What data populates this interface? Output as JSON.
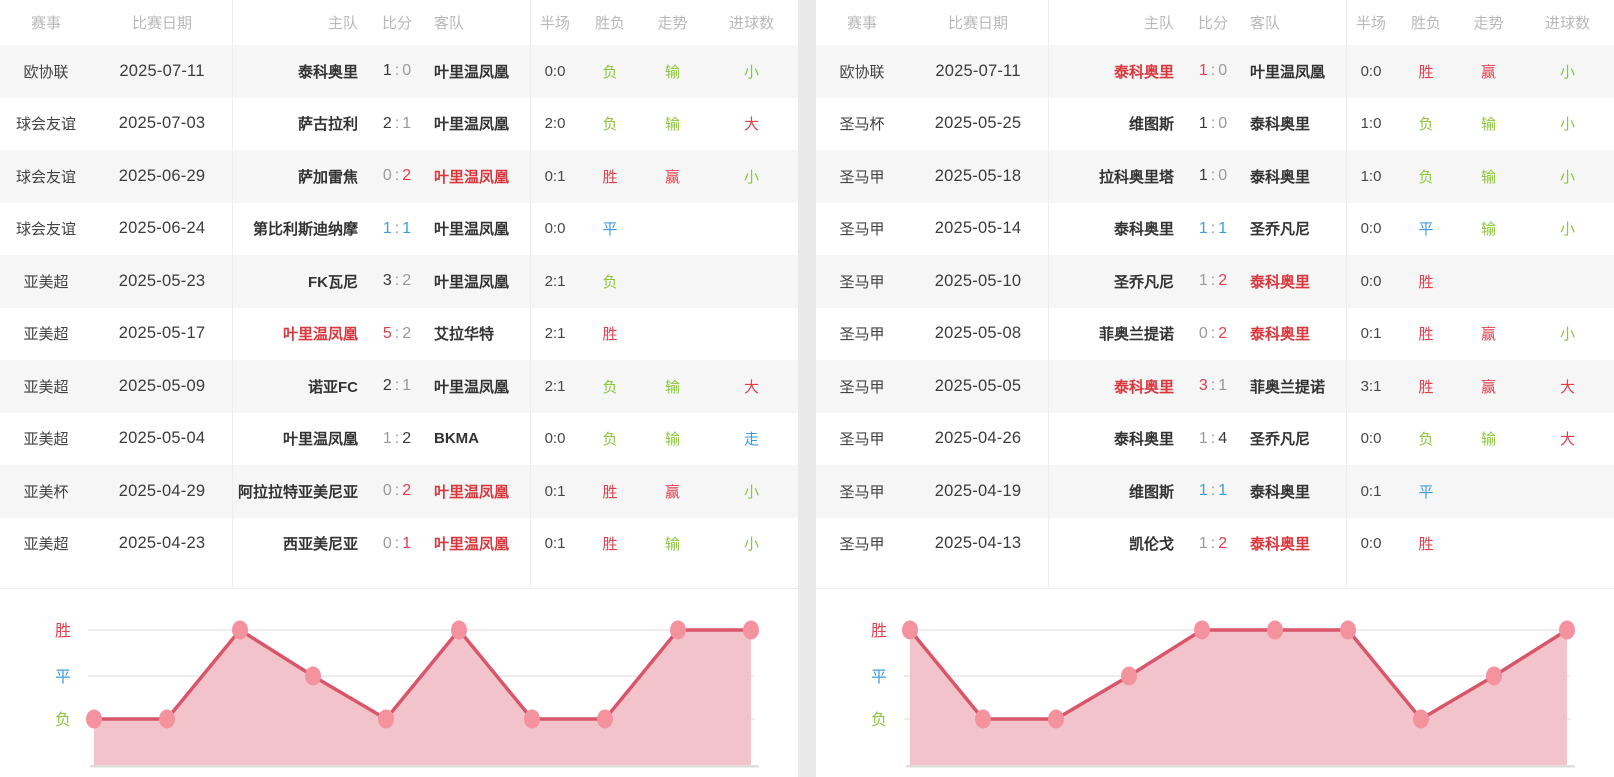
{
  "colors": {
    "result_red": "#e0404e",
    "team_red": "#d9383e",
    "green": "#8cc63c",
    "blue": "#3e9ce1",
    "dark_text": "#3f3f3f",
    "gray_text": "#9a9a9a",
    "header_text": "#b9b9b9",
    "row_alt_bg": "#f6f6f6",
    "divider": "#ededed",
    "panel_gap": "#e9e9e9",
    "chart_line": "#d9566a",
    "chart_fill": "#f3c3cb",
    "chart_dot": "#f4929e",
    "chart_grid": "#e7e7e7",
    "chart_baseline": "#dedede"
  },
  "table_header": {
    "comp": "赛事",
    "date": "比赛日期",
    "home": "主队",
    "score": "比分",
    "away": "客队",
    "half": "半场",
    "result": "胜负",
    "trend": "走势",
    "goals": "进球数"
  },
  "panels": [
    {
      "rows": [
        {
          "comp": "欧协联",
          "date": "2025-07-11",
          "home": "泰科奥里",
          "home_red": false,
          "s1": "1",
          "s1_c": "dark",
          "s2": "0",
          "s2_c": "gray",
          "away": "叶里温凤凰",
          "away_red": false,
          "half": "0:0",
          "res": "负",
          "res_c": "green",
          "trend": "输",
          "trend_c": "green",
          "goal": "小",
          "goal_c": "green"
        },
        {
          "comp": "球会友谊",
          "date": "2025-07-03",
          "home": "萨古拉利",
          "home_red": false,
          "s1": "2",
          "s1_c": "dark",
          "s2": "1",
          "s2_c": "gray",
          "away": "叶里温凤凰",
          "away_red": false,
          "half": "2:0",
          "res": "负",
          "res_c": "green",
          "trend": "输",
          "trend_c": "green",
          "goal": "大",
          "goal_c": "red"
        },
        {
          "comp": "球会友谊",
          "date": "2025-06-29",
          "home": "萨加雷焦",
          "home_red": false,
          "s1": "0",
          "s1_c": "gray",
          "s2": "2",
          "s2_c": "red",
          "away": "叶里温凤凰",
          "away_red": true,
          "half": "0:1",
          "res": "胜",
          "res_c": "red",
          "trend": "赢",
          "trend_c": "red",
          "goal": "小",
          "goal_c": "green"
        },
        {
          "comp": "球会友谊",
          "date": "2025-06-24",
          "home": "第比利斯迪纳摩",
          "home_red": false,
          "s1": "1",
          "s1_c": "blue",
          "s2": "1",
          "s2_c": "blue",
          "away": "叶里温凤凰",
          "away_red": false,
          "half": "0:0",
          "res": "平",
          "res_c": "blue",
          "trend": "",
          "trend_c": "",
          "goal": "",
          "goal_c": ""
        },
        {
          "comp": "亚美超",
          "date": "2025-05-23",
          "home": "FK瓦尼",
          "home_red": false,
          "s1": "3",
          "s1_c": "dark",
          "s2": "2",
          "s2_c": "gray",
          "away": "叶里温凤凰",
          "away_red": false,
          "half": "2:1",
          "res": "负",
          "res_c": "green",
          "trend": "",
          "trend_c": "",
          "goal": "",
          "goal_c": ""
        },
        {
          "comp": "亚美超",
          "date": "2025-05-17",
          "home": "叶里温凤凰",
          "home_red": true,
          "s1": "5",
          "s1_c": "red",
          "s2": "2",
          "s2_c": "gray",
          "away": "艾拉华特",
          "away_red": false,
          "half": "2:1",
          "res": "胜",
          "res_c": "red",
          "trend": "",
          "trend_c": "",
          "goal": "",
          "goal_c": ""
        },
        {
          "comp": "亚美超",
          "date": "2025-05-09",
          "home": "诺亚FC",
          "home_red": false,
          "s1": "2",
          "s1_c": "dark",
          "s2": "1",
          "s2_c": "gray",
          "away": "叶里温凤凰",
          "away_red": false,
          "half": "2:1",
          "res": "负",
          "res_c": "green",
          "trend": "输",
          "trend_c": "green",
          "goal": "大",
          "goal_c": "red"
        },
        {
          "comp": "亚美超",
          "date": "2025-05-04",
          "home": "叶里温凤凰",
          "home_red": false,
          "s1": "1",
          "s1_c": "gray",
          "s2": "2",
          "s2_c": "dark",
          "away": "BKMA",
          "away_red": false,
          "half": "0:0",
          "res": "负",
          "res_c": "green",
          "trend": "输",
          "trend_c": "green",
          "goal": "走",
          "goal_c": "blue"
        },
        {
          "comp": "亚美杯",
          "date": "2025-04-29",
          "home": "阿拉拉特亚美尼亚",
          "home_red": false,
          "s1": "0",
          "s1_c": "gray",
          "s2": "2",
          "s2_c": "red",
          "away": "叶里温凤凰",
          "away_red": true,
          "half": "0:1",
          "res": "胜",
          "res_c": "red",
          "trend": "赢",
          "trend_c": "red",
          "goal": "小",
          "goal_c": "green"
        },
        {
          "comp": "亚美超",
          "date": "2025-04-23",
          "home": "西亚美尼亚",
          "home_red": false,
          "s1": "0",
          "s1_c": "gray",
          "s2": "1",
          "s2_c": "red",
          "away": "叶里温凤凰",
          "away_red": true,
          "half": "0:1",
          "res": "胜",
          "res_c": "red",
          "trend": "输",
          "trend_c": "green",
          "goal": "小",
          "goal_c": "green"
        }
      ]
    },
    {
      "rows": [
        {
          "comp": "欧协联",
          "date": "2025-07-11",
          "home": "泰科奥里",
          "home_red": true,
          "s1": "1",
          "s1_c": "red",
          "s2": "0",
          "s2_c": "gray",
          "away": "叶里温凤凰",
          "away_red": false,
          "half": "0:0",
          "res": "胜",
          "res_c": "red",
          "trend": "赢",
          "trend_c": "red",
          "goal": "小",
          "goal_c": "green"
        },
        {
          "comp": "圣马杯",
          "date": "2025-05-25",
          "home": "维图斯",
          "home_red": false,
          "s1": "1",
          "s1_c": "dark",
          "s2": "0",
          "s2_c": "gray",
          "away": "泰科奥里",
          "away_red": false,
          "half": "1:0",
          "res": "负",
          "res_c": "green",
          "trend": "输",
          "trend_c": "green",
          "goal": "小",
          "goal_c": "green"
        },
        {
          "comp": "圣马甲",
          "date": "2025-05-18",
          "home": "拉科奥里塔",
          "home_red": false,
          "s1": "1",
          "s1_c": "dark",
          "s2": "0",
          "s2_c": "gray",
          "away": "泰科奥里",
          "away_red": false,
          "half": "1:0",
          "res": "负",
          "res_c": "green",
          "trend": "输",
          "trend_c": "green",
          "goal": "小",
          "goal_c": "green"
        },
        {
          "comp": "圣马甲",
          "date": "2025-05-14",
          "home": "泰科奥里",
          "home_red": false,
          "s1": "1",
          "s1_c": "blue",
          "s2": "1",
          "s2_c": "blue",
          "away": "圣乔凡尼",
          "away_red": false,
          "half": "0:0",
          "res": "平",
          "res_c": "blue",
          "trend": "输",
          "trend_c": "green",
          "goal": "小",
          "goal_c": "green"
        },
        {
          "comp": "圣马甲",
          "date": "2025-05-10",
          "home": "圣乔凡尼",
          "home_red": false,
          "s1": "1",
          "s1_c": "gray",
          "s2": "2",
          "s2_c": "red",
          "away": "泰科奥里",
          "away_red": true,
          "half": "0:0",
          "res": "胜",
          "res_c": "red",
          "trend": "",
          "trend_c": "",
          "goal": "",
          "goal_c": ""
        },
        {
          "comp": "圣马甲",
          "date": "2025-05-08",
          "home": "菲奥兰提诺",
          "home_red": false,
          "s1": "0",
          "s1_c": "gray",
          "s2": "2",
          "s2_c": "red",
          "away": "泰科奥里",
          "away_red": true,
          "half": "0:1",
          "res": "胜",
          "res_c": "red",
          "trend": "赢",
          "trend_c": "red",
          "goal": "小",
          "goal_c": "green"
        },
        {
          "comp": "圣马甲",
          "date": "2025-05-05",
          "home": "泰科奥里",
          "home_red": true,
          "s1": "3",
          "s1_c": "red",
          "s2": "1",
          "s2_c": "gray",
          "away": "菲奥兰提诺",
          "away_red": false,
          "half": "3:1",
          "res": "胜",
          "res_c": "red",
          "trend": "赢",
          "trend_c": "red",
          "goal": "大",
          "goal_c": "red"
        },
        {
          "comp": "圣马甲",
          "date": "2025-04-26",
          "home": "泰科奥里",
          "home_red": false,
          "s1": "1",
          "s1_c": "gray",
          "s2": "4",
          "s2_c": "dark",
          "away": "圣乔凡尼",
          "away_red": false,
          "half": "0:0",
          "res": "负",
          "res_c": "green",
          "trend": "输",
          "trend_c": "green",
          "goal": "大",
          "goal_c": "red"
        },
        {
          "comp": "圣马甲",
          "date": "2025-04-19",
          "home": "维图斯",
          "home_red": false,
          "s1": "1",
          "s1_c": "blue",
          "s2": "1",
          "s2_c": "blue",
          "away": "泰科奥里",
          "away_red": false,
          "half": "0:1",
          "res": "平",
          "res_c": "blue",
          "trend": "",
          "trend_c": "",
          "goal": "",
          "goal_c": ""
        },
        {
          "comp": "圣马甲",
          "date": "2025-04-13",
          "home": "凯伦戈",
          "home_red": false,
          "s1": "1",
          "s1_c": "gray",
          "s2": "2",
          "s2_c": "red",
          "away": "泰科奥里",
          "away_red": true,
          "half": "0:0",
          "res": "胜",
          "res_c": "red",
          "trend": "",
          "trend_c": "",
          "goal": "",
          "goal_c": ""
        }
      ]
    }
  ],
  "chart_data": [
    {
      "type": "line",
      "title": "",
      "categories": [
        "2025-07-11",
        "2025-07-03",
        "2025-06-29",
        "2025-06-24",
        "2025-05-23",
        "2025-05-17",
        "2025-05-09",
        "2025-05-04",
        "2025-04-29",
        "2025-04-23"
      ],
      "values": [
        "负",
        "负",
        "胜",
        "平",
        "负",
        "胜",
        "负",
        "负",
        "胜",
        "胜"
      ],
      "y_axis_labels": [
        "胜",
        "平",
        "负"
      ],
      "y_axis_label_colors": [
        "#e0404e",
        "#3e9ce1",
        "#8cc63c"
      ],
      "grid": true,
      "legend": "none",
      "style": "area-filled"
    },
    {
      "type": "line",
      "title": "",
      "categories": [
        "2025-07-11",
        "2025-05-25",
        "2025-05-18",
        "2025-05-14",
        "2025-05-10",
        "2025-05-08",
        "2025-05-05",
        "2025-04-26",
        "2025-04-19",
        "2025-04-13"
      ],
      "values": [
        "胜",
        "负",
        "负",
        "平",
        "胜",
        "胜",
        "胜",
        "负",
        "平",
        "胜"
      ],
      "y_axis_labels": [
        "胜",
        "平",
        "负"
      ],
      "y_axis_label_colors": [
        "#e0404e",
        "#3e9ce1",
        "#8cc63c"
      ],
      "grid": true,
      "legend": "none",
      "style": "area-filled"
    }
  ]
}
